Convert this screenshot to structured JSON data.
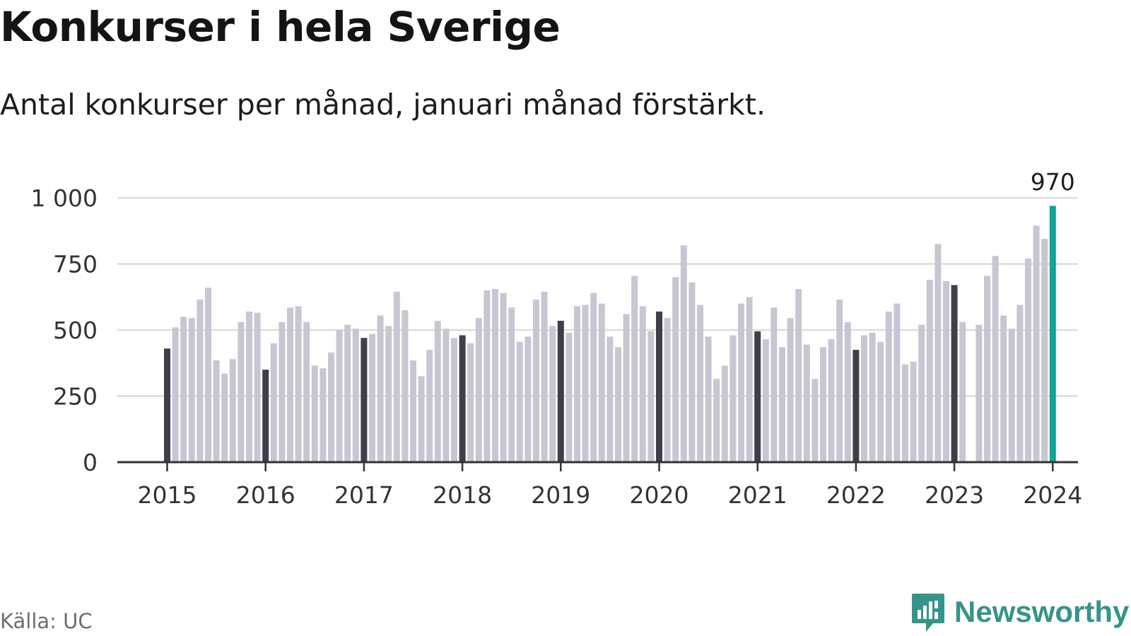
{
  "header": {
    "title": "Konkurser i hela Sverige",
    "subtitle": "Antal konkurser per månad, januari månad förstärkt."
  },
  "footer": {
    "source": "Källa: UC",
    "brand": "Newsworthy",
    "brand_icon": "newsworthy-bar-chart-icon"
  },
  "colors": {
    "january": "#3f3f4c",
    "month": "#c7c7d3",
    "highlight": "#15a297",
    "grid": "#dcdcdc",
    "axis": "#333333",
    "brand": "#35948a"
  },
  "chart_data": {
    "type": "bar",
    "title": "Konkurser i hela Sverige",
    "subtitle": "Antal konkurser per månad, januari månad förstärkt.",
    "xlabel": "",
    "ylabel": "",
    "ylim": [
      0,
      1000
    ],
    "y_ticks": [
      0,
      250,
      500,
      750,
      1000
    ],
    "y_tick_labels": [
      "0",
      "250",
      "500",
      "750",
      "1 000"
    ],
    "x_ticks": [
      "2015",
      "2016",
      "2017",
      "2018",
      "2019",
      "2020",
      "2021",
      "2022",
      "2023",
      "2024"
    ],
    "grid": true,
    "highlight_label": "970",
    "years": [
      {
        "year": 2015,
        "values": [
          430,
          510,
          550,
          545,
          615,
          660,
          385,
          335,
          390,
          530,
          570,
          565
        ]
      },
      {
        "year": 2016,
        "values": [
          350,
          450,
          530,
          585,
          590,
          530,
          365,
          355,
          415,
          500,
          520,
          505
        ]
      },
      {
        "year": 2017,
        "values": [
          470,
          485,
          555,
          515,
          645,
          575,
          385,
          325,
          425,
          535,
          505,
          470
        ]
      },
      {
        "year": 2018,
        "values": [
          480,
          450,
          545,
          650,
          655,
          640,
          585,
          455,
          475,
          615,
          645,
          515
        ]
      },
      {
        "year": 2019,
        "values": [
          535,
          490,
          590,
          595,
          640,
          600,
          475,
          435,
          560,
          705,
          590,
          495
        ]
      },
      {
        "year": 2020,
        "values": [
          570,
          545,
          700,
          820,
          680,
          595,
          475,
          315,
          365,
          480,
          600,
          625
        ]
      },
      {
        "year": 2021,
        "values": [
          495,
          465,
          585,
          435,
          545,
          655,
          445,
          315,
          435,
          465,
          615,
          530
        ]
      },
      {
        "year": 2022,
        "values": [
          425,
          480,
          490,
          455,
          570,
          600,
          370,
          380,
          520,
          690,
          825,
          685
        ]
      },
      {
        "year": 2023,
        "values": [
          670,
          530,
          0,
          520,
          705,
          780,
          555,
          505,
          595,
          770,
          895,
          845
        ]
      },
      {
        "year": 2024,
        "values": [
          970
        ]
      }
    ]
  }
}
